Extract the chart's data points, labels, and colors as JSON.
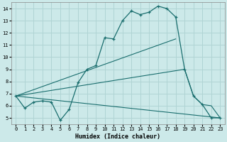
{
  "xlabel": "Humidex (Indice chaleur)",
  "ylabel": "",
  "xlim": [
    -0.5,
    23.5
  ],
  "ylim": [
    4.5,
    14.5
  ],
  "xticks": [
    0,
    1,
    2,
    3,
    4,
    5,
    6,
    7,
    8,
    9,
    10,
    11,
    12,
    13,
    14,
    15,
    16,
    17,
    18,
    19,
    20,
    21,
    22,
    23
  ],
  "yticks": [
    5,
    6,
    7,
    8,
    9,
    10,
    11,
    12,
    13,
    14
  ],
  "bg_color": "#cce9e9",
  "grid_color": "#b0d4d4",
  "line_color": "#1a6e6e",
  "line1_x": [
    0,
    1,
    2,
    3,
    4,
    5,
    6,
    7,
    8,
    9,
    10,
    11,
    12,
    13,
    14,
    15,
    16,
    17,
    18,
    19,
    20,
    21,
    22,
    23
  ],
  "line1_y": [
    6.8,
    5.8,
    6.3,
    6.4,
    6.3,
    4.8,
    5.7,
    7.9,
    9.0,
    9.3,
    11.6,
    11.5,
    13.0,
    13.8,
    13.5,
    13.7,
    14.2,
    14.0,
    13.3,
    9.0,
    6.8,
    6.1,
    5.0,
    5.0
  ],
  "line2_x": [
    0,
    23
  ],
  "line2_y": [
    6.8,
    5.0
  ],
  "line3_x": [
    0,
    19,
    20,
    21,
    22,
    23
  ],
  "line3_y": [
    6.8,
    9.0,
    6.8,
    6.1,
    6.0,
    5.0
  ],
  "line4_x": [
    0,
    18
  ],
  "line4_y": [
    6.8,
    11.5
  ]
}
